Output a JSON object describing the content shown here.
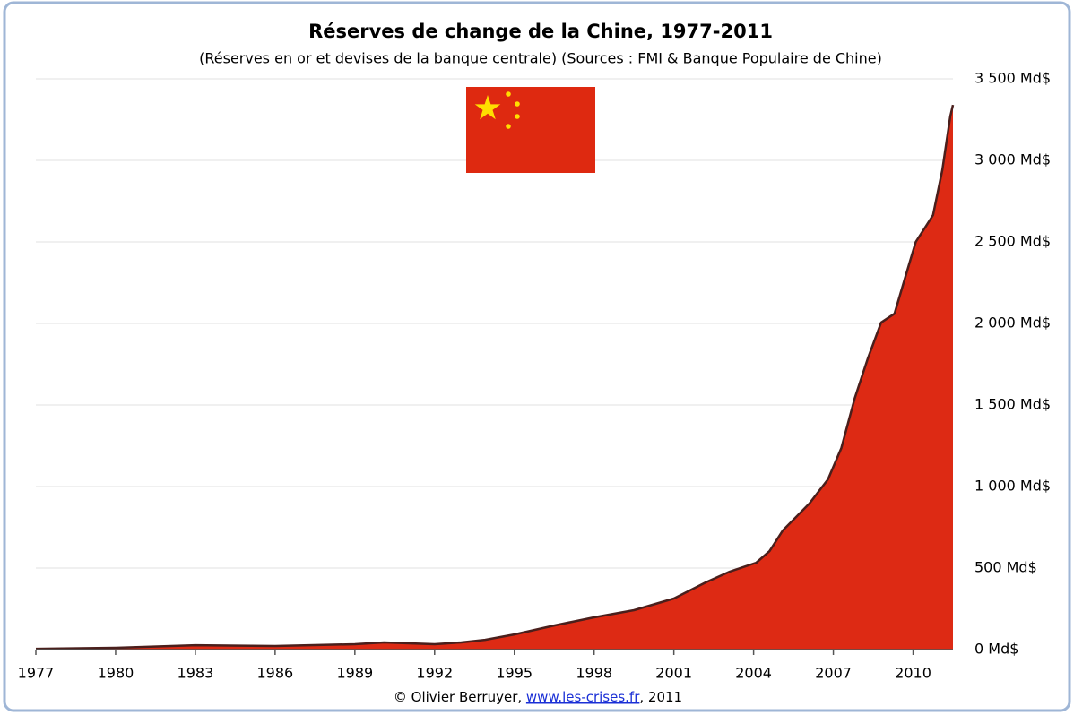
{
  "chart_data": {
    "type": "area",
    "title": "Réserves de change de la Chine, 1977-2011",
    "subtitle": "(Réserves en or et devises de la banque centrale) (Sources : FMI & Banque Populaire de Chine)",
    "credit": {
      "prefix": "© Olivier Berruyer, ",
      "link": "www.les-crises.fr",
      "suffix": ",  2011"
    },
    "color": "#dd2a14",
    "line_color": "#4a1f1c",
    "grid": true,
    "y_axis_side": "right",
    "x": [
      1977,
      1980,
      1983,
      1986,
      1989,
      1990.1,
      1992,
      1993,
      1993.9,
      1995,
      1996.5,
      1998,
      1999.5,
      2001,
      2002.2,
      2003.1,
      2004.1,
      2004.6,
      2005.1,
      2006.1,
      2006.8,
      2007.3,
      2007.8,
      2008.3,
      2008.8,
      2009.3,
      2009.7,
      2010.1,
      2010.5,
      2010.75,
      2011.1,
      2011.4,
      2011.5
    ],
    "values": [
      5,
      11,
      27,
      22,
      33,
      44,
      33,
      44,
      60,
      93,
      148,
      198,
      242,
      313,
      412,
      478,
      533,
      604,
      731,
      896,
      1044,
      1236,
      1539,
      1786,
      2006,
      2060,
      2280,
      2500,
      2600,
      2665,
      2940,
      3270,
      3340
    ],
    "xlim": [
      1977,
      2011.5
    ],
    "xticks": [
      1977,
      1980,
      1983,
      1986,
      1989,
      1992,
      1995,
      1998,
      2001,
      2004,
      2007,
      2010
    ],
    "ylim": [
      0,
      3500
    ],
    "yticks": [
      {
        "value": 0,
        "label": "0 Md$"
      },
      {
        "value": 500,
        "label": "500 Md$"
      },
      {
        "value": 1000,
        "label": "1 000 Md$"
      },
      {
        "value": 1500,
        "label": "1 500 Md$"
      },
      {
        "value": 2000,
        "label": "2 000 Md$"
      },
      {
        "value": 2500,
        "label": "2 500 Md$"
      },
      {
        "value": 3000,
        "label": "3 000 Md$"
      },
      {
        "value": 3500,
        "label": "3 500 Md$"
      }
    ]
  }
}
